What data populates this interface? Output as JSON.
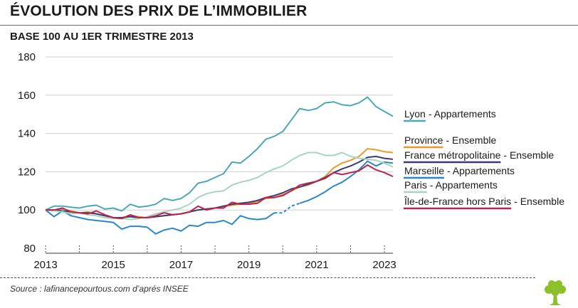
{
  "header": {
    "title": "ÉVOLUTION DES PRIX DE L’IMMOBILIER",
    "subtitle": "BASE 100 AU 1ER TRIMESTRE 2013"
  },
  "footer": {
    "source": "Source : lafinancepourtous.com d’aprés INSEE"
  },
  "chart_data": {
    "type": "line",
    "title": "ÉVOLUTION DES PRIX DE L’IMMOBILIER",
    "subtitle": "BASE 100 AU 1ER TRIMESTRE 2013",
    "xlabel": "",
    "ylabel": "",
    "xlim": [
      2013,
      2023.25
    ],
    "ylim": [
      80,
      180
    ],
    "x_ticks": [
      2013,
      2015,
      2017,
      2019,
      2021,
      2023
    ],
    "y_ticks": [
      80,
      100,
      120,
      140,
      160,
      180
    ],
    "legend_position": "right",
    "series": [
      {
        "name": "Lyon",
        "name_suffix": "- Appartements",
        "color": "#4aa8b8",
        "points": [
          [
            2013,
            100
          ],
          [
            2013.25,
            102
          ],
          [
            2013.5,
            102
          ],
          [
            2013.75,
            101.5
          ],
          [
            2014,
            101
          ],
          [
            2014.25,
            102
          ],
          [
            2014.5,
            102.5
          ],
          [
            2014.75,
            100.5
          ],
          [
            2015,
            101
          ],
          [
            2015.25,
            99.5
          ],
          [
            2015.5,
            103
          ],
          [
            2015.75,
            101.5
          ],
          [
            2016,
            102
          ],
          [
            2016.25,
            103
          ],
          [
            2016.5,
            106
          ],
          [
            2016.75,
            105
          ],
          [
            2017,
            106
          ],
          [
            2017.25,
            109
          ],
          [
            2017.5,
            114
          ],
          [
            2017.75,
            115
          ],
          [
            2018,
            117
          ],
          [
            2018.25,
            119
          ],
          [
            2018.5,
            125
          ],
          [
            2018.75,
            124.5
          ],
          [
            2019,
            128
          ],
          [
            2019.25,
            132
          ],
          [
            2019.5,
            137
          ],
          [
            2019.75,
            138.5
          ],
          [
            2020,
            141
          ],
          [
            2020.25,
            147
          ],
          [
            2020.5,
            153
          ],
          [
            2020.75,
            152
          ],
          [
            2021,
            153
          ],
          [
            2021.25,
            156
          ],
          [
            2021.5,
            156.5
          ],
          [
            2021.75,
            155
          ],
          [
            2022,
            154.5
          ],
          [
            2022.25,
            156
          ],
          [
            2022.5,
            159
          ],
          [
            2022.75,
            154
          ],
          [
            2023,
            151.5
          ],
          [
            2023.25,
            149
          ]
        ]
      },
      {
        "name": "Province",
        "name_suffix": "- Ensemble",
        "color": "#e89a2a",
        "points": [
          [
            2013,
            100
          ],
          [
            2013.25,
            100
          ],
          [
            2013.5,
            100.5
          ],
          [
            2013.75,
            99.5
          ],
          [
            2014,
            98.5
          ],
          [
            2014.25,
            99
          ],
          [
            2014.5,
            98
          ],
          [
            2014.75,
            97
          ],
          [
            2015,
            96
          ],
          [
            2015.25,
            96
          ],
          [
            2015.5,
            97
          ],
          [
            2015.75,
            96.5
          ],
          [
            2016,
            96
          ],
          [
            2016.25,
            96.5
          ],
          [
            2016.5,
            97
          ],
          [
            2016.75,
            97.5
          ],
          [
            2017,
            98
          ],
          [
            2017.25,
            99
          ],
          [
            2017.5,
            100
          ],
          [
            2017.75,
            100.5
          ],
          [
            2018,
            101
          ],
          [
            2018.25,
            102
          ],
          [
            2018.5,
            102.5
          ],
          [
            2018.75,
            103
          ],
          [
            2019,
            103.5
          ],
          [
            2019.25,
            104.5
          ],
          [
            2019.5,
            106
          ],
          [
            2019.75,
            106.5
          ],
          [
            2020,
            108
          ],
          [
            2020.25,
            110
          ],
          [
            2020.5,
            112
          ],
          [
            2020.75,
            113
          ],
          [
            2021,
            115
          ],
          [
            2021.25,
            117.5
          ],
          [
            2021.5,
            122
          ],
          [
            2021.75,
            124.5
          ],
          [
            2022,
            126
          ],
          [
            2022.25,
            128
          ],
          [
            2022.5,
            132
          ],
          [
            2022.75,
            131.5
          ],
          [
            2023,
            130.5
          ],
          [
            2023.25,
            130
          ]
        ]
      },
      {
        "name": "France  métropolitaine",
        "name_suffix": "- Ensemble",
        "color": "#3d3a7a",
        "points": [
          [
            2013,
            100
          ],
          [
            2013.25,
            100
          ],
          [
            2013.5,
            99.5
          ],
          [
            2013.75,
            99
          ],
          [
            2014,
            98.5
          ],
          [
            2014.25,
            98.5
          ],
          [
            2014.5,
            98
          ],
          [
            2014.75,
            97
          ],
          [
            2015,
            96
          ],
          [
            2015.25,
            96
          ],
          [
            2015.5,
            96.5
          ],
          [
            2015.75,
            96
          ],
          [
            2016,
            96
          ],
          [
            2016.25,
            96.5
          ],
          [
            2016.5,
            97
          ],
          [
            2016.75,
            97.5
          ],
          [
            2017,
            98
          ],
          [
            2017.25,
            99
          ],
          [
            2017.5,
            100
          ],
          [
            2017.75,
            100.5
          ],
          [
            2018,
            101
          ],
          [
            2018.25,
            102
          ],
          [
            2018.5,
            103
          ],
          [
            2018.75,
            103.5
          ],
          [
            2019,
            104
          ],
          [
            2019.25,
            105
          ],
          [
            2019.5,
            106.5
          ],
          [
            2019.75,
            107.5
          ],
          [
            2020,
            109
          ],
          [
            2020.25,
            111
          ],
          [
            2020.5,
            112
          ],
          [
            2020.75,
            113.5
          ],
          [
            2021,
            115
          ],
          [
            2021.25,
            117
          ],
          [
            2021.5,
            119.5
          ],
          [
            2021.75,
            121.5
          ],
          [
            2022,
            123
          ],
          [
            2022.25,
            125
          ],
          [
            2022.5,
            127.5
          ],
          [
            2022.75,
            128
          ],
          [
            2023,
            127
          ],
          [
            2023.25,
            126.5
          ]
        ]
      },
      {
        "name": "Marseille",
        "name_suffix": "- Appartements",
        "color": "#2b86c8",
        "dashed_x_range": [
          2019.75,
          2020.5
        ],
        "points": [
          [
            2013,
            100
          ],
          [
            2013.25,
            96.5
          ],
          [
            2013.5,
            99.5
          ],
          [
            2013.75,
            97
          ],
          [
            2014,
            96
          ],
          [
            2014.25,
            95
          ],
          [
            2014.5,
            94.5
          ],
          [
            2014.75,
            94
          ],
          [
            2015,
            93.5
          ],
          [
            2015.25,
            90
          ],
          [
            2015.5,
            91.5
          ],
          [
            2015.75,
            91.5
          ],
          [
            2016,
            91
          ],
          [
            2016.25,
            87.5
          ],
          [
            2016.5,
            89.5
          ],
          [
            2016.75,
            90.5
          ],
          [
            2017,
            89
          ],
          [
            2017.25,
            92
          ],
          [
            2017.5,
            91.5
          ],
          [
            2017.75,
            93.5
          ],
          [
            2018,
            93.5
          ],
          [
            2018.25,
            94.5
          ],
          [
            2018.5,
            92.5
          ],
          [
            2018.75,
            97
          ],
          [
            2019,
            95.5
          ],
          [
            2019.25,
            95
          ],
          [
            2019.5,
            95.5
          ],
          [
            2019.75,
            98.5
          ],
          [
            2020,
            98.5
          ],
          [
            2020.25,
            102
          ],
          [
            2020.5,
            103.5
          ],
          [
            2020.75,
            105
          ],
          [
            2021,
            107
          ],
          [
            2021.25,
            109.5
          ],
          [
            2021.5,
            112.5
          ],
          [
            2021.75,
            114.5
          ],
          [
            2022,
            117.5
          ],
          [
            2022.25,
            121
          ],
          [
            2022.5,
            125.5
          ],
          [
            2022.75,
            123
          ],
          [
            2023,
            125
          ],
          [
            2023.25,
            124.5
          ]
        ]
      },
      {
        "name": "Paris",
        "name_suffix": "- Appartements",
        "color": "#a8d4c2",
        "points": [
          [
            2013,
            100
          ],
          [
            2013.25,
            99.5
          ],
          [
            2013.5,
            99
          ],
          [
            2013.75,
            98
          ],
          [
            2014,
            98.5
          ],
          [
            2014.25,
            97.5
          ],
          [
            2014.5,
            97
          ],
          [
            2014.75,
            96
          ],
          [
            2015,
            95.5
          ],
          [
            2015.25,
            95.5
          ],
          [
            2015.5,
            95
          ],
          [
            2015.75,
            95.5
          ],
          [
            2016,
            96.5
          ],
          [
            2016.25,
            98
          ],
          [
            2016.5,
            99
          ],
          [
            2016.75,
            100
          ],
          [
            2017,
            101
          ],
          [
            2017.25,
            103
          ],
          [
            2017.5,
            106.5
          ],
          [
            2017.75,
            108.5
          ],
          [
            2018,
            109.5
          ],
          [
            2018.25,
            110
          ],
          [
            2018.5,
            113
          ],
          [
            2018.75,
            114.5
          ],
          [
            2019,
            115.5
          ],
          [
            2019.25,
            117
          ],
          [
            2019.5,
            119.5
          ],
          [
            2019.75,
            121.5
          ],
          [
            2020,
            123
          ],
          [
            2020.25,
            126
          ],
          [
            2020.5,
            128.5
          ],
          [
            2020.75,
            130
          ],
          [
            2021,
            130
          ],
          [
            2021.25,
            128.5
          ],
          [
            2021.5,
            128.5
          ],
          [
            2021.75,
            130
          ],
          [
            2022,
            128
          ],
          [
            2022.25,
            127
          ],
          [
            2022.5,
            126.5
          ],
          [
            2022.75,
            126
          ],
          [
            2023,
            124.5
          ],
          [
            2023.25,
            122.5
          ]
        ]
      },
      {
        "name": "Île-de-France hors Paris",
        "name_suffix": "- Ensemble",
        "color": "#b8254f",
        "points": [
          [
            2013,
            100
          ],
          [
            2013.25,
            100
          ],
          [
            2013.5,
            101
          ],
          [
            2013.75,
            99
          ],
          [
            2014,
            98.5
          ],
          [
            2014.25,
            98
          ],
          [
            2014.5,
            99.5
          ],
          [
            2014.75,
            97.5
          ],
          [
            2015,
            96
          ],
          [
            2015.25,
            95.5
          ],
          [
            2015.5,
            97.5
          ],
          [
            2015.75,
            96
          ],
          [
            2016,
            96
          ],
          [
            2016.25,
            97
          ],
          [
            2016.5,
            98.5
          ],
          [
            2016.75,
            97.5
          ],
          [
            2017,
            98
          ],
          [
            2017.25,
            99
          ],
          [
            2017.5,
            102
          ],
          [
            2017.75,
            100
          ],
          [
            2018,
            101
          ],
          [
            2018.25,
            101
          ],
          [
            2018.5,
            104
          ],
          [
            2018.75,
            103
          ],
          [
            2019,
            103
          ],
          [
            2019.25,
            103.5
          ],
          [
            2019.5,
            106.5
          ],
          [
            2019.75,
            106.5
          ],
          [
            2020,
            107.5
          ],
          [
            2020.25,
            110
          ],
          [
            2020.5,
            113
          ],
          [
            2020.75,
            114
          ],
          [
            2021,
            115
          ],
          [
            2021.25,
            116.5
          ],
          [
            2021.5,
            119.5
          ],
          [
            2021.75,
            118.5
          ],
          [
            2022,
            119.5
          ],
          [
            2022.25,
            120.5
          ],
          [
            2022.5,
            123.5
          ],
          [
            2022.75,
            121
          ],
          [
            2023,
            119.5
          ],
          [
            2023.25,
            117.5
          ]
        ]
      }
    ]
  },
  "brand": {
    "logo": "tree-logo",
    "accent": "#8cbf2a"
  }
}
